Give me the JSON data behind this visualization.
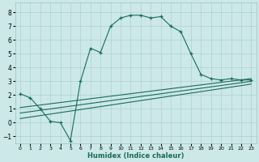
{
  "xlabel": "Humidex (Indice chaleur)",
  "ylabel": "",
  "xlim": [
    -0.5,
    23.5
  ],
  "ylim": [
    -1.5,
    8.7
  ],
  "xticks": [
    0,
    1,
    2,
    3,
    4,
    5,
    6,
    7,
    8,
    9,
    10,
    11,
    12,
    13,
    14,
    15,
    16,
    17,
    18,
    19,
    20,
    21,
    22,
    23
  ],
  "yticks": [
    -1,
    0,
    1,
    2,
    3,
    4,
    5,
    6,
    7,
    8
  ],
  "bg_color": "#cce8e8",
  "line_color": "#1a6b5a",
  "line1_x": [
    0,
    1,
    2,
    3,
    4,
    5,
    6,
    7,
    8,
    9,
    10,
    11,
    12,
    13,
    14,
    15,
    16,
    17,
    18,
    19,
    20,
    21,
    22,
    23
  ],
  "line1_y": [
    2.1,
    1.8,
    1.0,
    0.1,
    0.0,
    -1.3,
    3.0,
    5.4,
    5.1,
    7.0,
    7.6,
    7.8,
    7.8,
    7.6,
    7.7,
    7.0,
    6.6,
    5.0,
    3.5,
    3.2,
    3.1,
    3.2,
    3.1,
    3.1
  ],
  "line2_x": [
    0,
    23
  ],
  "line2_y": [
    1.1,
    3.2
  ],
  "line3_x": [
    0,
    23
  ],
  "line3_y": [
    0.7,
    3.0
  ],
  "line4_x": [
    0,
    23
  ],
  "line4_y": [
    0.3,
    2.8
  ]
}
